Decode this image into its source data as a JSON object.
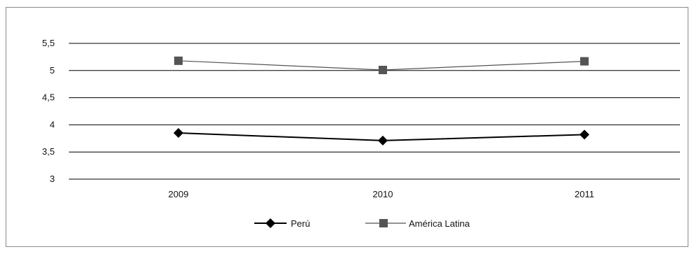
{
  "chart_data": {
    "type": "line",
    "title": "",
    "xlabel": "",
    "ylabel": "",
    "categories": [
      "2009",
      "2010",
      "2011"
    ],
    "ylim": [
      3,
      5.5
    ],
    "yticks": [
      "3",
      "3,5",
      "4",
      "4,5",
      "5",
      "5,5"
    ],
    "ytick_values": [
      3,
      3.5,
      4,
      4.5,
      5,
      5.5
    ],
    "grid": "horizontal",
    "legend_position": "bottom",
    "series": [
      {
        "name": "Perú",
        "values": [
          3.85,
          3.71,
          3.82
        ],
        "marker": "diamond",
        "color": "#000000"
      },
      {
        "name": "América Latina",
        "values": [
          5.18,
          5.01,
          5.17
        ],
        "marker": "square",
        "color": "#555555"
      }
    ]
  }
}
